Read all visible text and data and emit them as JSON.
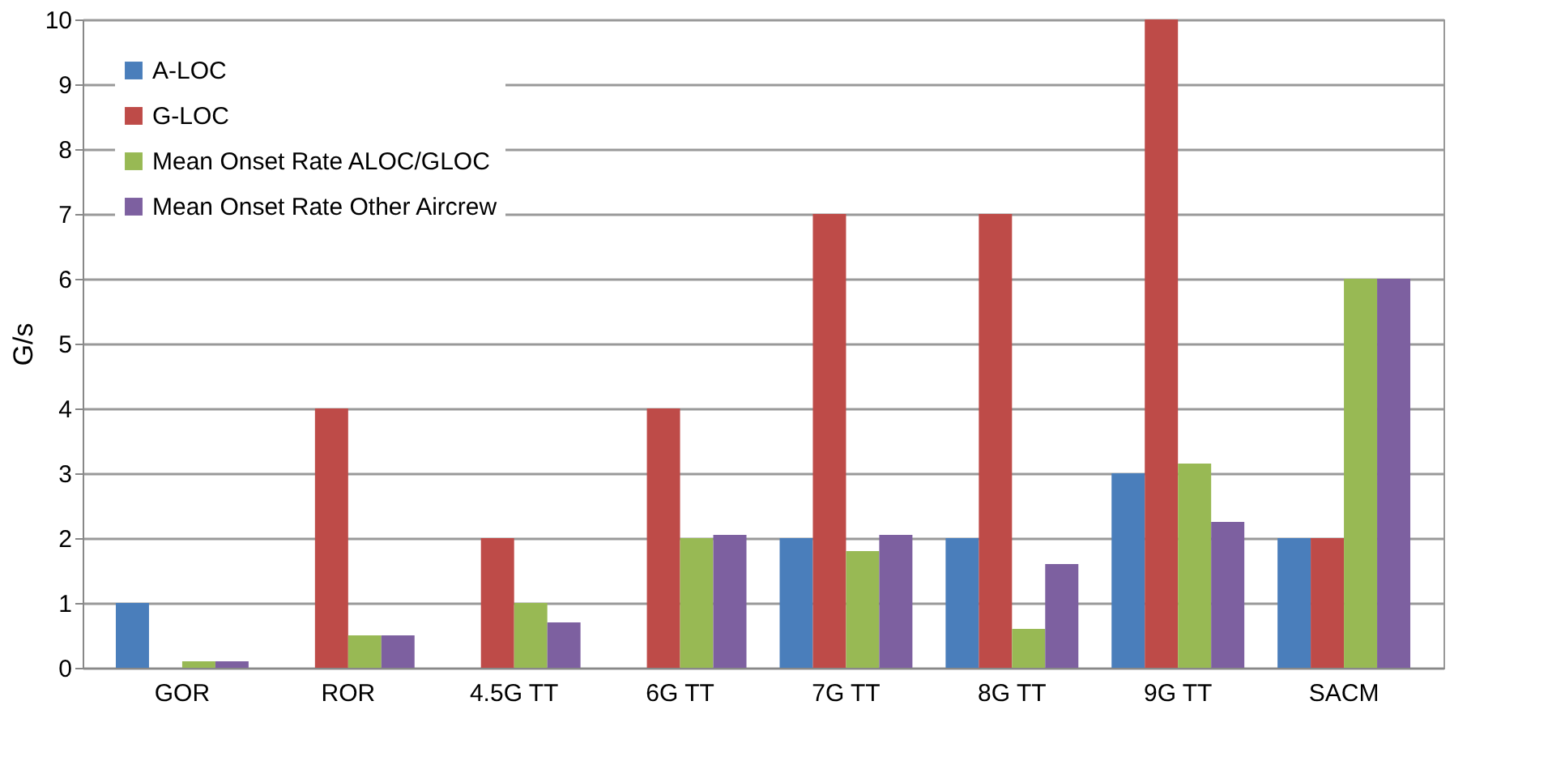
{
  "chart_data": {
    "type": "bar",
    "ylabel": "G/s",
    "categories": [
      "GOR",
      "ROR",
      "4.5G TT",
      "6G TT",
      "7G TT",
      "8G TT",
      "9G TT",
      "SACM"
    ],
    "series": [
      {
        "name": "A-LOC",
        "color": "#4a7ebb",
        "values": [
          1,
          0,
          0,
          0,
          2,
          2,
          3,
          2
        ]
      },
      {
        "name": "G-LOC",
        "color": "#be4b48",
        "values": [
          0,
          4,
          2,
          4,
          7,
          7,
          10,
          2
        ]
      },
      {
        "name": "Mean Onset Rate ALOC/GLOC",
        "color": "#98b954",
        "values": [
          0.1,
          0.5,
          1,
          2,
          1.8,
          0.6,
          3.15,
          6
        ]
      },
      {
        "name": "Mean Onset Rate Other Aircrew",
        "color": "#7d60a0",
        "values": [
          0.1,
          0.5,
          0.7,
          2.05,
          2.05,
          1.6,
          2.25,
          6
        ]
      }
    ],
    "ylim": [
      0,
      10
    ],
    "yticks": [
      0,
      1,
      2,
      3,
      4,
      5,
      6,
      7,
      8,
      9,
      10
    ],
    "grid": "y",
    "legend": "top left"
  }
}
